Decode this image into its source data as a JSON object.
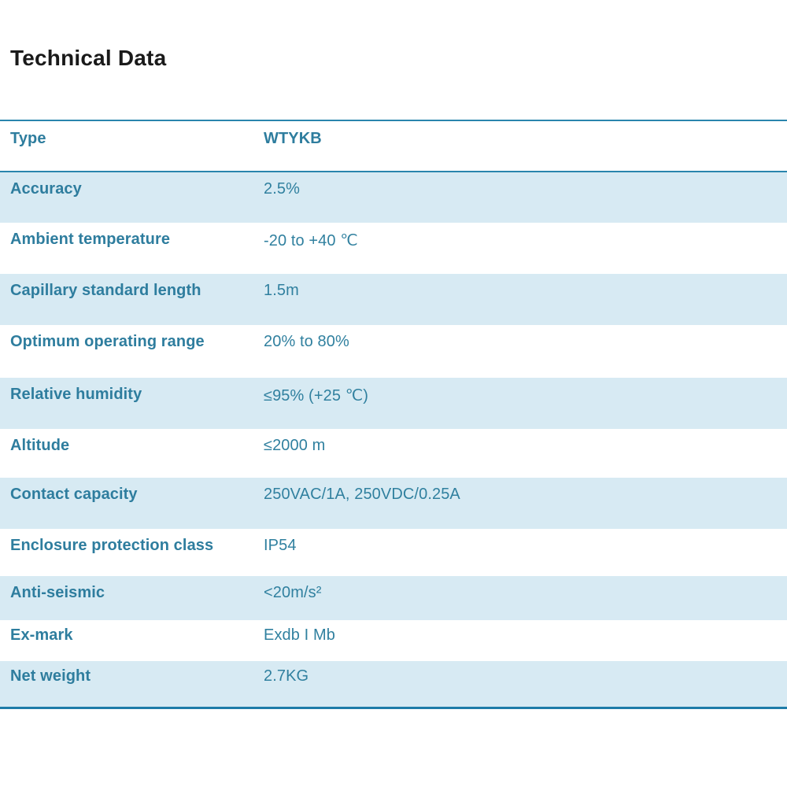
{
  "page": {
    "title": "Technical Data"
  },
  "colors": {
    "title_text": "#1A1A1A",
    "accent_text": "#2E7D9E",
    "value_text": "#30809F",
    "alt_row_bg": "#D7EAF3",
    "divider_top": "#2A85AD",
    "divider_bottom": "#1E7CA8",
    "background": "#FFFFFF"
  },
  "table": {
    "header_row": {
      "label": "Type",
      "value": "WTYKB"
    },
    "rows": [
      {
        "label": "Accuracy",
        "value": "2.5%"
      },
      {
        "label": "Ambient temperature",
        "value": "-20 to +40 ℃"
      },
      {
        "label": "Capillary standard length",
        "value": "1.5m"
      },
      {
        "label": "Optimum operating range",
        "value": "20% to 80%"
      },
      {
        "label": "Relative humidity",
        "value": "≤95% (+25 ℃)"
      },
      {
        "label": "Altitude",
        "value": "≤2000 m"
      },
      {
        "label": "Contact capacity",
        "value": "250VAC/1A, 250VDC/0.25A"
      },
      {
        "label": "Enclosure protection class",
        "value": "IP54"
      },
      {
        "label": "Anti-seismic",
        "value": "<20m/s²"
      },
      {
        "label": "Ex-mark",
        "value": "Exdb I Mb"
      },
      {
        "label": "Net weight",
        "value": "2.7KG"
      }
    ]
  }
}
